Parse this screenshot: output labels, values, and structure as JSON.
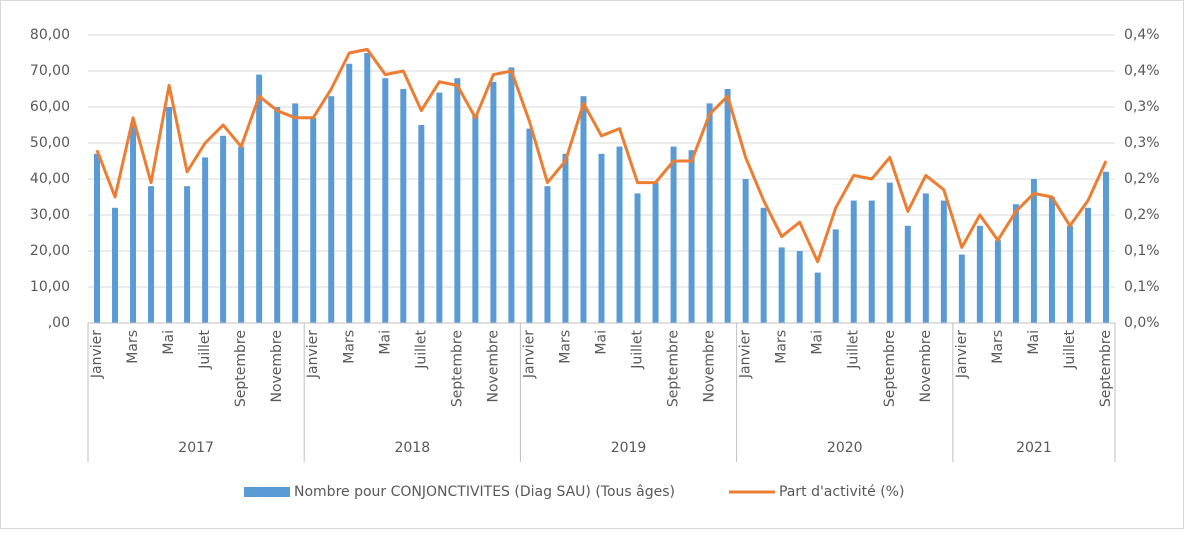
{
  "chart_data": {
    "type": "bar-line",
    "categories": [
      "Janvier",
      null,
      "Mars",
      null,
      "Mai",
      null,
      "Juillet",
      null,
      "Septembre",
      null,
      "Novembre",
      null,
      "Janvier",
      null,
      "Mars",
      null,
      "Mai",
      null,
      "Juillet",
      null,
      "Septembre",
      null,
      "Novembre",
      null,
      "Janvier",
      null,
      "Mars",
      null,
      "Mai",
      null,
      "Juillet",
      null,
      "Septembre",
      null,
      "Novembre",
      null,
      "Janvier",
      null,
      "Mars",
      null,
      "Mai",
      null,
      "Juillet",
      null,
      "Septembre",
      null,
      "Novembre",
      null,
      "Janvier",
      null,
      "Mars",
      null,
      "Mai",
      null,
      "Juillet",
      null,
      "Septembre"
    ],
    "groups": [
      "2017",
      "2018",
      "2019",
      "2020",
      "2021"
    ],
    "series": [
      {
        "name": "Nombre pour CONJONCTIVITES (Diag SAU) (Tous âges)",
        "type": "bar",
        "color": "#5b9bd5",
        "values": [
          47,
          32,
          55,
          38,
          60,
          38,
          46,
          52,
          49,
          69,
          60,
          61,
          57,
          63,
          72,
          75,
          68,
          65,
          55,
          64,
          68,
          58,
          67,
          71,
          54,
          38,
          47,
          63,
          47,
          49,
          36,
          39,
          49,
          48,
          61,
          65,
          40,
          32,
          21,
          20,
          14,
          26,
          34,
          34,
          39,
          27,
          36,
          34,
          19,
          27,
          23,
          33,
          40,
          35,
          27,
          32,
          42
        ]
      },
      {
        "name": "Part d'activité (%)",
        "type": "line",
        "axis": "y2",
        "color": "#ed7d31",
        "values": [
          0.24,
          0.175,
          0.285,
          0.195,
          0.33,
          0.21,
          0.25,
          0.275,
          0.245,
          0.315,
          0.295,
          0.285,
          0.285,
          0.325,
          0.375,
          0.38,
          0.345,
          0.35,
          0.295,
          0.335,
          0.33,
          0.285,
          0.345,
          0.35,
          0.28,
          0.195,
          0.225,
          0.305,
          0.26,
          0.27,
          0.195,
          0.195,
          0.225,
          0.225,
          0.29,
          0.315,
          0.23,
          0.17,
          0.12,
          0.14,
          0.085,
          0.16,
          0.205,
          0.2,
          0.23,
          0.155,
          0.205,
          0.185,
          0.105,
          0.15,
          0.115,
          0.155,
          0.18,
          0.175,
          0.135,
          0.17,
          0.225
        ]
      }
    ],
    "ylim": [
      0,
      80
    ],
    "yticks": [
      {
        "value": 0,
        "label": ",00"
      },
      {
        "value": 10,
        "label": "10,00"
      },
      {
        "value": 20,
        "label": "20,00"
      },
      {
        "value": 30,
        "label": "30,00"
      },
      {
        "value": 40,
        "label": "40,00"
      },
      {
        "value": 50,
        "label": "50,00"
      },
      {
        "value": 60,
        "label": "60,00"
      },
      {
        "value": 70,
        "label": "70,00"
      },
      {
        "value": 80,
        "label": "80,00"
      }
    ],
    "y2lim": [
      0,
      0.4
    ],
    "y2ticks": [
      {
        "value": 0,
        "label": "0,0%"
      },
      {
        "value": 0.05,
        "label": "0,1%"
      },
      {
        "value": 0.1,
        "label": "0,1%"
      },
      {
        "value": 0.15,
        "label": "0,2%"
      },
      {
        "value": 0.2,
        "label": "0,2%"
      },
      {
        "value": 0.25,
        "label": "0,3%"
      },
      {
        "value": 0.3,
        "label": "0,3%"
      },
      {
        "value": 0.35,
        "label": "0,4%"
      },
      {
        "value": 0.4,
        "label": "0,4%"
      }
    ],
    "grid": true,
    "legend": "bottom"
  }
}
